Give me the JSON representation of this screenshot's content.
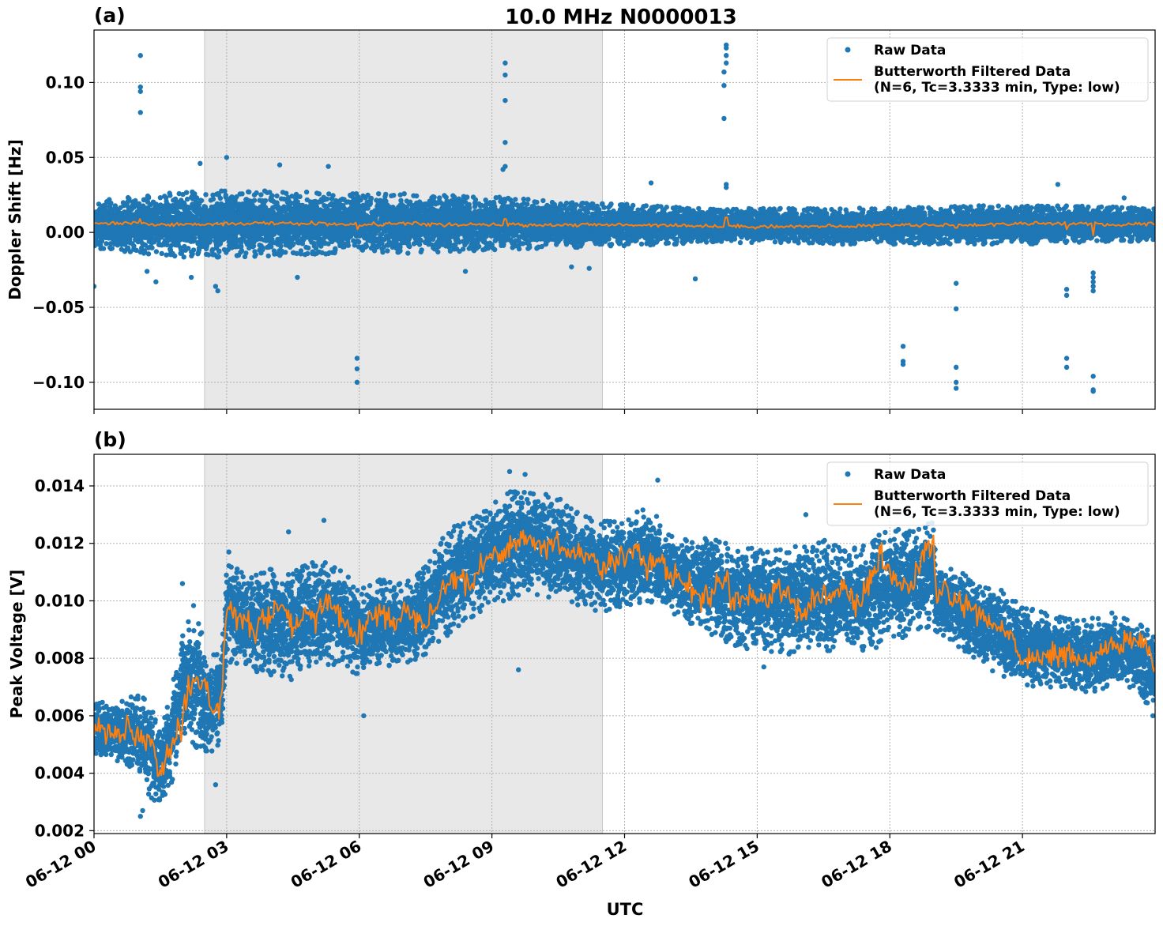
{
  "figure": {
    "title": "10.0 MHz N0000013",
    "xlabel": "UTC",
    "x_tick_labels": [
      "06-12 00",
      "06-12 03",
      "06-12 06",
      "06-12 09",
      "06-12 12",
      "06-12 15",
      "06-12 18",
      "06-12 21"
    ]
  },
  "colors": {
    "raw": "#1f77b4",
    "filtered": "#ff7f0e",
    "shade": "#e8e8e8",
    "grid": "#b0b0b0"
  },
  "chart_data": [
    {
      "type": "scatter",
      "panel_label": "(a)",
      "ylabel": "Doppler Shift [Hz]",
      "x_axis": "time (UTC hours on 06-12)",
      "xlim": [
        0,
        24
      ],
      "ylim": [
        -0.118,
        0.135
      ],
      "y_ticks": [
        -0.1,
        -0.05,
        0.0,
        0.05,
        0.1
      ],
      "y_tick_labels": [
        "−0.10",
        "−0.05",
        "0.00",
        "0.05",
        "0.10"
      ],
      "x_ticks": [
        0,
        3,
        6,
        9,
        12,
        15,
        18,
        21
      ],
      "shaded_span": [
        2.5,
        11.5
      ],
      "grid": true,
      "legend": {
        "placement": "upper right",
        "entries": [
          {
            "label": "Raw Data",
            "marker": "dot"
          },
          {
            "label": "Butterworth Filtered Data",
            "label2": "(N=6, Tc=3.3333 min, Type: low)",
            "marker": "line"
          }
        ]
      },
      "series": [
        {
          "name": "Raw Data",
          "kind": "band",
          "x": [
            0,
            1,
            2,
            3,
            4,
            5,
            6,
            7,
            8,
            9,
            10,
            11,
            12,
            13,
            14,
            15,
            16,
            17,
            18,
            19,
            20,
            21,
            22,
            23,
            24
          ],
          "upper": [
            0.021,
            0.024,
            0.027,
            0.028,
            0.028,
            0.027,
            0.026,
            0.026,
            0.025,
            0.024,
            0.022,
            0.02,
            0.019,
            0.017,
            0.016,
            0.016,
            0.016,
            0.016,
            0.017,
            0.017,
            0.018,
            0.018,
            0.018,
            0.017,
            0.016
          ],
          "lower": [
            -0.011,
            -0.014,
            -0.017,
            -0.017,
            -0.016,
            -0.015,
            -0.014,
            -0.014,
            -0.013,
            -0.012,
            -0.011,
            -0.01,
            -0.009,
            -0.008,
            -0.007,
            -0.007,
            -0.007,
            -0.008,
            -0.008,
            -0.008,
            -0.008,
            -0.008,
            -0.007,
            -0.006,
            -0.006
          ],
          "outliers": [
            {
              "x": 0.0,
              "y": -0.036
            },
            {
              "x": 1.05,
              "y": 0.118
            },
            {
              "x": 1.05,
              "y": 0.097
            },
            {
              "x": 1.05,
              "y": 0.094
            },
            {
              "x": 1.05,
              "y": 0.08
            },
            {
              "x": 1.2,
              "y": -0.026
            },
            {
              "x": 1.4,
              "y": -0.033
            },
            {
              "x": 2.2,
              "y": -0.03
            },
            {
              "x": 2.75,
              "y": -0.036
            },
            {
              "x": 2.8,
              "y": -0.039
            },
            {
              "x": 2.4,
              "y": 0.046
            },
            {
              "x": 3.0,
              "y": 0.05
            },
            {
              "x": 4.2,
              "y": 0.045
            },
            {
              "x": 5.3,
              "y": 0.044
            },
            {
              "x": 4.6,
              "y": -0.03
            },
            {
              "x": 5.95,
              "y": -0.084
            },
            {
              "x": 5.95,
              "y": -0.091
            },
            {
              "x": 5.95,
              "y": -0.1
            },
            {
              "x": 9.3,
              "y": 0.113
            },
            {
              "x": 9.3,
              "y": 0.105
            },
            {
              "x": 9.3,
              "y": 0.088
            },
            {
              "x": 9.3,
              "y": 0.06
            },
            {
              "x": 9.3,
              "y": 0.044
            },
            {
              "x": 9.25,
              "y": 0.042
            },
            {
              "x": 8.4,
              "y": -0.026
            },
            {
              "x": 10.8,
              "y": -0.023
            },
            {
              "x": 11.2,
              "y": -0.024
            },
            {
              "x": 12.6,
              "y": 0.033
            },
            {
              "x": 13.6,
              "y": -0.031
            },
            {
              "x": 14.3,
              "y": 0.125
            },
            {
              "x": 14.3,
              "y": 0.123
            },
            {
              "x": 14.3,
              "y": 0.118
            },
            {
              "x": 14.3,
              "y": 0.113
            },
            {
              "x": 14.25,
              "y": 0.107
            },
            {
              "x": 14.25,
              "y": 0.098
            },
            {
              "x": 14.25,
              "y": 0.076
            },
            {
              "x": 14.3,
              "y": 0.032
            },
            {
              "x": 14.3,
              "y": 0.03
            },
            {
              "x": 18.3,
              "y": -0.076
            },
            {
              "x": 18.3,
              "y": -0.086
            },
            {
              "x": 18.3,
              "y": -0.088
            },
            {
              "x": 19.5,
              "y": -0.034
            },
            {
              "x": 19.5,
              "y": -0.051
            },
            {
              "x": 19.5,
              "y": -0.09
            },
            {
              "x": 19.5,
              "y": -0.1
            },
            {
              "x": 19.5,
              "y": -0.104
            },
            {
              "x": 22.0,
              "y": -0.038
            },
            {
              "x": 22.0,
              "y": -0.042
            },
            {
              "x": 22.0,
              "y": -0.084
            },
            {
              "x": 22.0,
              "y": -0.09
            },
            {
              "x": 22.6,
              "y": -0.027
            },
            {
              "x": 22.6,
              "y": -0.03
            },
            {
              "x": 22.6,
              "y": -0.033
            },
            {
              "x": 22.6,
              "y": -0.036
            },
            {
              "x": 22.6,
              "y": -0.039
            },
            {
              "x": 22.6,
              "y": -0.096
            },
            {
              "x": 22.6,
              "y": -0.105
            },
            {
              "x": 22.6,
              "y": -0.106
            },
            {
              "x": 21.8,
              "y": 0.032
            },
            {
              "x": 23.3,
              "y": 0.023
            }
          ]
        },
        {
          "name": "Butterworth Filtered Data",
          "kind": "line",
          "x": [
            0,
            1,
            2,
            3,
            4,
            5,
            6,
            7,
            8,
            9,
            10,
            11,
            12,
            13,
            14,
            15,
            16,
            17,
            18,
            19,
            20,
            21,
            22,
            23,
            24
          ],
          "y": [
            0.006,
            0.006,
            0.005,
            0.006,
            0.006,
            0.006,
            0.005,
            0.006,
            0.005,
            0.005,
            0.005,
            0.005,
            0.005,
            0.005,
            0.004,
            0.004,
            0.004,
            0.004,
            0.005,
            0.005,
            0.005,
            0.006,
            0.006,
            0.005,
            0.006
          ],
          "spikes": [
            {
              "x": 1.05,
              "y": 0.009
            },
            {
              "x": 5.95,
              "y": 0.002
            },
            {
              "x": 9.3,
              "y": 0.009
            },
            {
              "x": 14.3,
              "y": 0.01
            },
            {
              "x": 19.5,
              "y": 0.003
            },
            {
              "x": 22.0,
              "y": 0.002
            },
            {
              "x": 22.6,
              "y": -0.002
            }
          ]
        }
      ]
    },
    {
      "type": "scatter",
      "panel_label": "(b)",
      "ylabel": "Peak Voltage [V]",
      "x_axis": "time (UTC hours on 06-12)",
      "xlim": [
        0,
        24
      ],
      "ylim": [
        0.0019,
        0.0151
      ],
      "y_ticks": [
        0.002,
        0.004,
        0.006,
        0.008,
        0.01,
        0.012,
        0.014
      ],
      "y_tick_labels": [
        "0.002",
        "0.004",
        "0.006",
        "0.008",
        "0.010",
        "0.012",
        "0.014"
      ],
      "x_ticks": [
        0,
        3,
        6,
        9,
        12,
        15,
        18,
        21
      ],
      "shaded_span": [
        2.5,
        11.5
      ],
      "grid": true,
      "legend": {
        "placement": "upper right",
        "entries": [
          {
            "label": "Raw Data",
            "marker": "dot"
          },
          {
            "label": "Butterworth Filtered Data",
            "label2": "(N=6, Tc=3.3333 min, Type: low)",
            "marker": "line"
          }
        ]
      },
      "series": [
        {
          "name": "Butterworth Filtered Data",
          "kind": "line",
          "x": [
            0,
            0.25,
            0.5,
            0.75,
            1.0,
            1.25,
            1.5,
            1.75,
            2.0,
            2.25,
            2.5,
            2.75,
            2.9,
            3.0,
            3.25,
            3.5,
            3.75,
            4.0,
            4.25,
            4.5,
            4.75,
            5.0,
            5.25,
            5.5,
            5.75,
            6.0,
            6.25,
            6.5,
            6.75,
            7.0,
            7.25,
            7.5,
            7.75,
            8.0,
            8.25,
            8.5,
            8.75,
            9.0,
            9.25,
            9.5,
            9.75,
            10.0,
            10.25,
            10.5,
            10.75,
            11.0,
            11.25,
            11.5,
            11.75,
            12.0,
            12.25,
            12.5,
            12.75,
            13.0,
            13.25,
            13.5,
            13.75,
            14.0,
            14.25,
            14.5,
            14.75,
            15.0,
            15.25,
            15.5,
            15.75,
            16.0,
            16.25,
            16.5,
            16.75,
            17.0,
            17.25,
            17.5,
            17.75,
            18.0,
            18.25,
            18.5,
            18.75,
            19.0,
            19.05,
            19.25,
            19.5,
            19.75,
            20.0,
            20.25,
            20.5,
            20.75,
            21.0,
            21.25,
            21.5,
            21.75,
            22.0,
            22.25,
            22.5,
            22.75,
            23.0,
            23.25,
            23.5,
            23.75,
            24.0
          ],
          "y": [
            0.0057,
            0.0055,
            0.0052,
            0.0056,
            0.005,
            0.0053,
            0.004,
            0.0048,
            0.0058,
            0.0072,
            0.007,
            0.0062,
            0.0068,
            0.01,
            0.0094,
            0.009,
            0.0092,
            0.0095,
            0.0098,
            0.009,
            0.0095,
            0.0093,
            0.01,
            0.0098,
            0.009,
            0.0088,
            0.0094,
            0.0096,
            0.0093,
            0.0096,
            0.0095,
            0.0094,
            0.01,
            0.0106,
            0.011,
            0.0104,
            0.0112,
            0.0116,
            0.0118,
            0.012,
            0.0122,
            0.012,
            0.0118,
            0.0121,
            0.0116,
            0.0118,
            0.0114,
            0.011,
            0.0114,
            0.0116,
            0.012,
            0.0112,
            0.0114,
            0.011,
            0.0108,
            0.0104,
            0.01,
            0.0104,
            0.0108,
            0.0102,
            0.01,
            0.0102,
            0.01,
            0.0106,
            0.0102,
            0.0094,
            0.01,
            0.0104,
            0.01,
            0.0104,
            0.0098,
            0.0104,
            0.0114,
            0.011,
            0.0106,
            0.0104,
            0.0116,
            0.012,
            0.01,
            0.0104,
            0.01,
            0.0098,
            0.0094,
            0.0092,
            0.009,
            0.0088,
            0.008,
            0.0078,
            0.0082,
            0.008,
            0.0082,
            0.008,
            0.0078,
            0.0082,
            0.0084,
            0.0086,
            0.0085,
            0.0087,
            0.0074
          ]
        },
        {
          "name": "Raw Data",
          "kind": "band",
          "x": [
            0,
            0.5,
            1.0,
            1.25,
            1.5,
            1.75,
            2.0,
            2.25,
            2.5,
            2.75,
            2.9,
            3.0,
            3.5,
            4.0,
            4.5,
            5.0,
            5.5,
            6.0,
            6.5,
            7.0,
            7.5,
            8.0,
            8.5,
            9.0,
            9.5,
            10.0,
            10.5,
            11.0,
            11.5,
            12.0,
            12.5,
            13.0,
            13.5,
            14.0,
            14.5,
            15.0,
            15.5,
            16.0,
            16.5,
            17.0,
            17.5,
            18.0,
            18.5,
            19.0,
            19.05,
            19.5,
            20.0,
            20.5,
            21.0,
            21.5,
            22.0,
            22.5,
            23.0,
            23.5,
            24.0
          ],
          "upper": [
            0.0066,
            0.0064,
            0.0068,
            0.0065,
            0.0054,
            0.007,
            0.0088,
            0.01,
            0.0085,
            0.0082,
            0.0086,
            0.0115,
            0.0108,
            0.0112,
            0.011,
            0.0115,
            0.0112,
            0.0105,
            0.0108,
            0.0106,
            0.0112,
            0.0125,
            0.0128,
            0.0134,
            0.014,
            0.0138,
            0.0136,
            0.013,
            0.0128,
            0.0128,
            0.0134,
            0.0124,
            0.0122,
            0.0122,
            0.012,
            0.0118,
            0.0118,
            0.012,
            0.0122,
            0.0118,
            0.012,
            0.0126,
            0.0124,
            0.0128,
            0.011,
            0.0112,
            0.0106,
            0.0104,
            0.0098,
            0.0096,
            0.0094,
            0.0094,
            0.0096,
            0.0094,
            0.009
          ],
          "lower": [
            0.0045,
            0.0044,
            0.004,
            0.0032,
            0.0028,
            0.0035,
            0.0055,
            0.005,
            0.0042,
            0.0048,
            0.0052,
            0.0078,
            0.0076,
            0.0074,
            0.0072,
            0.0075,
            0.0078,
            0.0074,
            0.0076,
            0.0078,
            0.008,
            0.0088,
            0.0094,
            0.0098,
            0.01,
            0.0102,
            0.01,
            0.0098,
            0.0096,
            0.0098,
            0.01,
            0.0094,
            0.0092,
            0.0088,
            0.0084,
            0.0082,
            0.0082,
            0.008,
            0.0082,
            0.0084,
            0.0082,
            0.0086,
            0.0088,
            0.0092,
            0.0088,
            0.0084,
            0.0078,
            0.0074,
            0.007,
            0.007,
            0.007,
            0.0068,
            0.007,
            0.0068,
            0.0062
          ],
          "outliers": [
            {
              "x": 1.05,
              "y": 0.0025
            },
            {
              "x": 1.1,
              "y": 0.0027
            },
            {
              "x": 2.0,
              "y": 0.0106
            },
            {
              "x": 2.75,
              "y": 0.0036
            },
            {
              "x": 3.05,
              "y": 0.0117
            },
            {
              "x": 4.4,
              "y": 0.0124
            },
            {
              "x": 5.2,
              "y": 0.0128
            },
            {
              "x": 6.1,
              "y": 0.006
            },
            {
              "x": 9.4,
              "y": 0.0145
            },
            {
              "x": 9.75,
              "y": 0.0144
            },
            {
              "x": 9.6,
              "y": 0.0076
            },
            {
              "x": 12.75,
              "y": 0.0142
            },
            {
              "x": 15.15,
              "y": 0.0077
            },
            {
              "x": 16.1,
              "y": 0.013
            },
            {
              "x": 18.05,
              "y": 0.0137
            },
            {
              "x": 23.95,
              "y": 0.006
            }
          ]
        }
      ]
    }
  ]
}
